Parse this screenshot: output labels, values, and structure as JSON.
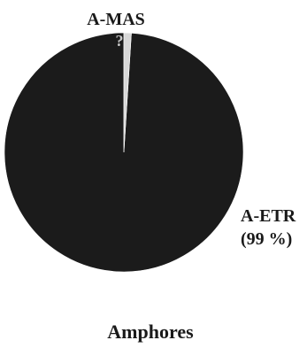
{
  "chart_data": {
    "type": "pie",
    "title": "Amphores",
    "slices": [
      {
        "label": "A-ETR",
        "percent_label": "(99 %)",
        "value": 99,
        "color": "#1b1b1b"
      },
      {
        "label": "A-MAS",
        "marker": "?",
        "value": 1,
        "color": "#d8d8d8"
      }
    ],
    "legend": "none"
  }
}
